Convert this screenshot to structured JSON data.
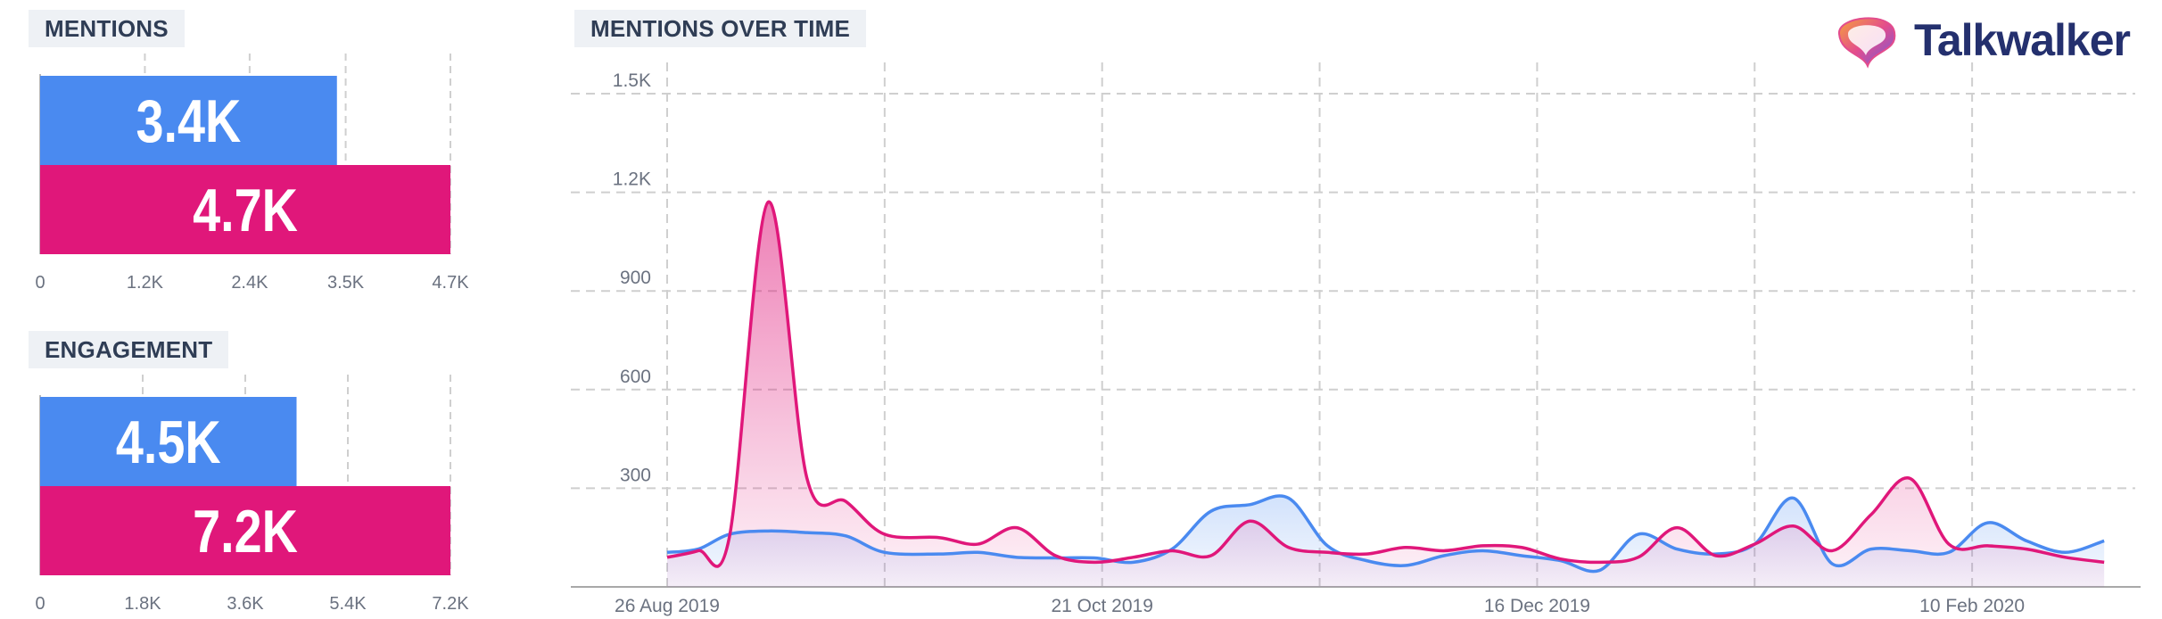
{
  "titles": {
    "mentions": "MENTIONS",
    "engagement": "ENGAGEMENT",
    "over_time": "MENTIONS OVER TIME"
  },
  "logo": {
    "text": "Talkwalker",
    "icon": "talkwalker-bubble-logo"
  },
  "colors": {
    "blue": "#4a8af0",
    "pink": "#e0177a",
    "grid": "#cfcfcf",
    "axis_text": "#6b7280"
  },
  "chart_data": [
    {
      "id": "mentions",
      "type": "bar",
      "orientation": "horizontal",
      "title": "MENTIONS",
      "series": [
        {
          "value": 3400,
          "label": "3.4K",
          "color": "#4a8af0"
        },
        {
          "value": 4700,
          "label": "4.7K",
          "color": "#e0177a"
        }
      ],
      "xlim": [
        0,
        4700
      ],
      "ticks": [
        {
          "value": 0,
          "label": "0"
        },
        {
          "value": 1200,
          "label": "1.2K"
        },
        {
          "value": 2400,
          "label": "2.4K"
        },
        {
          "value": 3500,
          "label": "3.5K"
        },
        {
          "value": 4700,
          "label": "4.7K"
        }
      ],
      "grid": true
    },
    {
      "id": "engagement",
      "type": "bar",
      "orientation": "horizontal",
      "title": "ENGAGEMENT",
      "series": [
        {
          "value": 4500,
          "label": "4.5K",
          "color": "#4a8af0"
        },
        {
          "value": 7200,
          "label": "7.2K",
          "color": "#e0177a"
        }
      ],
      "xlim": [
        0,
        7200
      ],
      "ticks": [
        {
          "value": 0,
          "label": "0"
        },
        {
          "value": 1800,
          "label": "1.8K"
        },
        {
          "value": 3600,
          "label": "3.6K"
        },
        {
          "value": 5400,
          "label": "5.4K"
        },
        {
          "value": 7200,
          "label": "7.2K"
        }
      ],
      "grid": true
    },
    {
      "id": "over_time",
      "type": "area",
      "title": "MENTIONS OVER TIME",
      "ylim": [
        0,
        1500
      ],
      "yticks": [
        {
          "value": 300,
          "label": "300"
        },
        {
          "value": 600,
          "label": "600"
        },
        {
          "value": 900,
          "label": "900"
        },
        {
          "value": 1200,
          "label": "1.2K"
        },
        {
          "value": 1500,
          "label": "1.5K"
        }
      ],
      "xlim": [
        "2019-08-26",
        "2020-03-02"
      ],
      "xticks": [
        {
          "value": "2019-08-26",
          "label": "26 Aug 2019"
        },
        {
          "value": "2019-10-21",
          "label": "21 Oct 2019"
        },
        {
          "value": "2019-12-16",
          "label": "16 Dec 2019"
        },
        {
          "value": "2020-02-10",
          "label": "10 Feb 2020"
        }
      ],
      "grid": true,
      "series": [
        {
          "color": "#4a8af0",
          "points": [
            [
              "2019-08-26",
              105
            ],
            [
              "2019-08-30",
              115
            ],
            [
              "2019-09-03",
              160
            ],
            [
              "2019-09-08",
              170
            ],
            [
              "2019-09-13",
              165
            ],
            [
              "2019-09-18",
              155
            ],
            [
              "2019-09-23",
              105
            ],
            [
              "2019-09-30",
              100
            ],
            [
              "2019-10-05",
              105
            ],
            [
              "2019-10-10",
              90
            ],
            [
              "2019-10-15",
              88
            ],
            [
              "2019-10-20",
              88
            ],
            [
              "2019-10-25",
              75
            ],
            [
              "2019-10-30",
              115
            ],
            [
              "2019-11-04",
              230
            ],
            [
              "2019-11-09",
              250
            ],
            [
              "2019-11-14",
              270
            ],
            [
              "2019-11-19",
              125
            ],
            [
              "2019-11-24",
              80
            ],
            [
              "2019-11-29",
              65
            ],
            [
              "2019-12-04",
              95
            ],
            [
              "2019-12-09",
              110
            ],
            [
              "2019-12-14",
              95
            ],
            [
              "2019-12-19",
              80
            ],
            [
              "2019-12-24",
              50
            ],
            [
              "2019-12-29",
              160
            ],
            [
              "2020-01-03",
              115
            ],
            [
              "2020-01-08",
              100
            ],
            [
              "2020-01-13",
              130
            ],
            [
              "2020-01-18",
              270
            ],
            [
              "2020-01-23",
              70
            ],
            [
              "2020-01-28",
              115
            ],
            [
              "2020-02-02",
              110
            ],
            [
              "2020-02-07",
              105
            ],
            [
              "2020-02-12",
              195
            ],
            [
              "2020-02-17",
              140
            ],
            [
              "2020-02-22",
              105
            ],
            [
              "2020-02-27",
              140
            ]
          ]
        },
        {
          "color": "#e0177a",
          "points": [
            [
              "2019-08-26",
              90
            ],
            [
              "2019-08-30",
              110
            ],
            [
              "2019-09-03",
              150
            ],
            [
              "2019-09-08",
              1170
            ],
            [
              "2019-09-13",
              330
            ],
            [
              "2019-09-18",
              260
            ],
            [
              "2019-09-23",
              160
            ],
            [
              "2019-09-30",
              150
            ],
            [
              "2019-10-05",
              130
            ],
            [
              "2019-10-10",
              180
            ],
            [
              "2019-10-15",
              95
            ],
            [
              "2019-10-20",
              75
            ],
            [
              "2019-10-25",
              90
            ],
            [
              "2019-10-30",
              110
            ],
            [
              "2019-11-04",
              95
            ],
            [
              "2019-11-09",
              200
            ],
            [
              "2019-11-14",
              120
            ],
            [
              "2019-11-19",
              105
            ],
            [
              "2019-11-24",
              100
            ],
            [
              "2019-11-29",
              120
            ],
            [
              "2019-12-04",
              110
            ],
            [
              "2019-12-09",
              125
            ],
            [
              "2019-12-14",
              120
            ],
            [
              "2019-12-19",
              85
            ],
            [
              "2019-12-24",
              75
            ],
            [
              "2019-12-29",
              90
            ],
            [
              "2020-01-03",
              180
            ],
            [
              "2020-01-08",
              95
            ],
            [
              "2020-01-13",
              130
            ],
            [
              "2020-01-18",
              185
            ],
            [
              "2020-01-23",
              110
            ],
            [
              "2020-01-28",
              220
            ],
            [
              "2020-02-02",
              330
            ],
            [
              "2020-02-07",
              130
            ],
            [
              "2020-02-12",
              125
            ],
            [
              "2020-02-17",
              115
            ],
            [
              "2020-02-22",
              90
            ],
            [
              "2020-02-27",
              75
            ]
          ]
        }
      ]
    }
  ]
}
